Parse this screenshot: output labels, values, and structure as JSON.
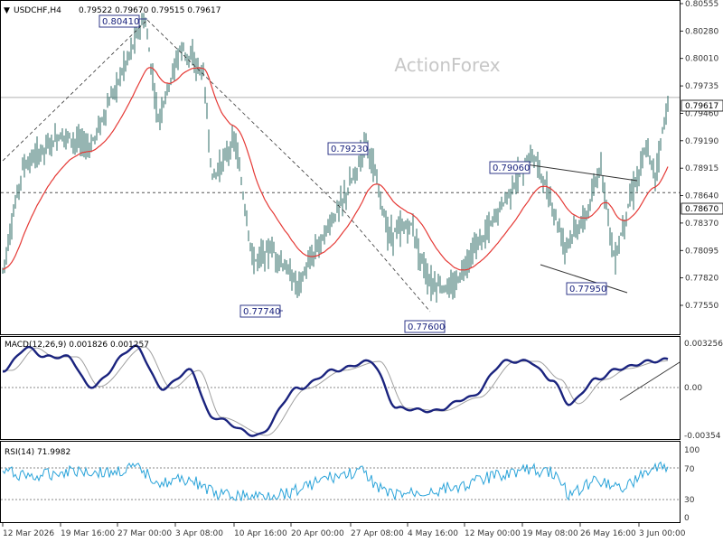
{
  "header": {
    "symbol": "USDCHF,H4",
    "ohlc": "0.79522 0.79670 0.79515 0.79617"
  },
  "watermark": "ActionForex",
  "colors": {
    "price_bars": "#2d6b66",
    "moving_average": "#e53935",
    "macd_line": "#1a237e",
    "macd_signal": "#a0a0a0",
    "rsi_line": "#29a3d9",
    "trendlines": "#333333",
    "grid_dashed": "#555555",
    "callout_border": "#1a237e"
  },
  "main_panel": {
    "y_ticks": [
      "0.80555",
      "0.80280",
      "0.80010",
      "0.79735",
      "0.79460",
      "0.79190",
      "0.78915",
      "0.78640",
      "0.78370",
      "0.78095",
      "0.77820",
      "0.77550"
    ],
    "current_price_tag": "0.79617",
    "dashed_level_tag": "0.78670",
    "callouts": [
      "0.80410",
      "0.79230",
      "0.79060",
      "0.77740",
      "0.77600",
      "0.77950"
    ]
  },
  "macd_panel": {
    "title": "MACD(12,26,9) 0.001826 0.001257",
    "y_ticks": [
      "0.003256",
      "0.00",
      "-0.00354"
    ]
  },
  "rsi_panel": {
    "title": "RSI(14) 71.9982",
    "y_ticks": [
      "100",
      "70",
      "30",
      "0"
    ]
  },
  "x_axis": {
    "labels": [
      "12 Mar 2026",
      "19 Mar 16:00",
      "27 Mar 00:00",
      "3 Apr 08:00",
      "10 Apr 16:00",
      "20 Apr 00:00",
      "27 Apr 08:00",
      "4 May 16:00",
      "12 May 00:00",
      "19 May 08:00",
      "26 May 16:00",
      "3 Jun 00:00"
    ]
  },
  "chart_data": [
    {
      "type": "ohlc",
      "title": "USDCHF,H4",
      "series": [
        {
          "values": [
            {
              "x": "12 Mar 2026",
              "y": 0.779
            },
            {
              "x": "15 Mar 2026",
              "y": 0.7892
            },
            {
              "x": "19 Mar 16:00",
              "y": 0.7925
            },
            {
              "x": "23 Mar",
              "y": 0.7912
            },
            {
              "x": "27 Mar 00:00",
              "y": 0.8041
            },
            {
              "x": "29 Mar",
              "y": 0.794
            },
            {
              "x": "31 Mar",
              "y": 0.8012
            },
            {
              "x": "3 Apr 08:00",
              "y": 0.7985
            },
            {
              "x": "6 Apr",
              "y": 0.788
            },
            {
              "x": "8 Apr",
              "y": 0.792
            },
            {
              "x": "10 Apr 16:00",
              "y": 0.7798
            },
            {
              "x": "14 Apr",
              "y": 0.7812
            },
            {
              "x": "17 Apr",
              "y": 0.7774
            },
            {
              "x": "20 Apr 00:00",
              "y": 0.7812
            },
            {
              "x": "23 Apr",
              "y": 0.786
            },
            {
              "x": "27 Apr 08:00",
              "y": 0.789
            },
            {
              "x": "29 Apr",
              "y": 0.7923
            },
            {
              "x": "1 May",
              "y": 0.7825
            },
            {
              "x": "4 May 16:00",
              "y": 0.7835
            },
            {
              "x": "7 May",
              "y": 0.7778
            },
            {
              "x": "9 May",
              "y": 0.777
            },
            {
              "x": "12 May 00:00",
              "y": 0.7805
            },
            {
              "x": "14 May",
              "y": 0.783
            },
            {
              "x": "16 May",
              "y": 0.787
            },
            {
              "x": "19 May 08:00",
              "y": 0.7906
            },
            {
              "x": "21 May",
              "y": 0.787
            },
            {
              "x": "23 May",
              "y": 0.7815
            },
            {
              "x": "26 May 16:00",
              "y": 0.7845
            },
            {
              "x": "27 May",
              "y": 0.7895
            },
            {
              "x": "28 May",
              "y": 0.7798
            },
            {
              "x": "30 May",
              "y": 0.7855
            },
            {
              "x": "1 Jun",
              "y": 0.791
            },
            {
              "x": "3 Jun 00:00",
              "y": 0.7885
            },
            {
              "x": "4 Jun",
              "y": 0.7962
            }
          ]
        }
      ],
      "ylim": [
        0.7755,
        0.8055
      ],
      "levels": [
        0.79617,
        0.7867
      ]
    },
    {
      "type": "line",
      "title": "MACD(12,26,9) 0.001826 0.001257",
      "ylim": [
        -0.00354,
        0.003256
      ]
    },
    {
      "type": "line",
      "title": "RSI(14) 71.9982",
      "ylim": [
        0,
        100
      ],
      "levels": [
        70,
        30
      ]
    }
  ]
}
